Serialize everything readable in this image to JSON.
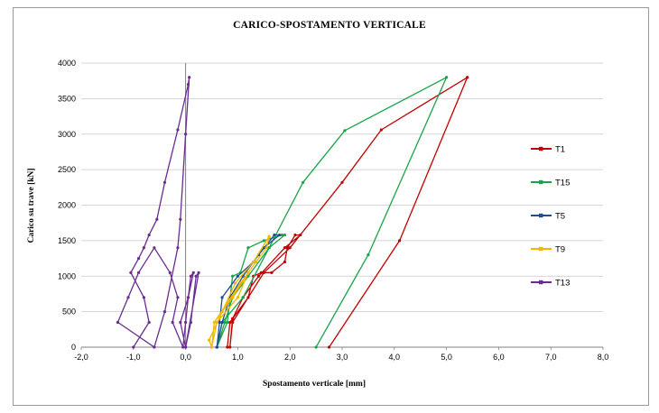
{
  "chart_data": {
    "type": "line",
    "title": "CARICO-SPOSTAMENTO VERTICALE",
    "xlabel": "Spostamento verticale [mm]",
    "ylabel": "Carico su trave [kN]",
    "xlim": [
      -2,
      8
    ],
    "ylim": [
      0,
      4000
    ],
    "xticks": [
      "-2,0",
      "-1,0",
      "0,0",
      "1,0",
      "2,0",
      "3,0",
      "4,0",
      "5,0",
      "6,0",
      "7,0",
      "8,0"
    ],
    "yticks": [
      "0",
      "500",
      "1000",
      "1500",
      "2000",
      "2500",
      "3000",
      "3500",
      "4000"
    ],
    "grid": "horizontal",
    "legend": "right",
    "series": [
      {
        "name": "T1",
        "color": "#c00000",
        "points": [
          [
            0.8,
            0
          ],
          [
            0.85,
            350
          ],
          [
            1.2,
            700
          ],
          [
            1.3,
            1000
          ],
          [
            1.45,
            1050
          ],
          [
            1.65,
            1050
          ],
          [
            1.9,
            1200
          ],
          [
            1.95,
            1400
          ],
          [
            2.1,
            1580
          ],
          [
            2.2,
            1580
          ],
          [
            1.9,
            1400
          ],
          [
            1.4,
            1000
          ],
          [
            1.1,
            700
          ],
          [
            0.9,
            400
          ],
          [
            0.85,
            0
          ],
          [
            0.9,
            350
          ],
          [
            1.5,
            1050
          ],
          [
            2.0,
            1400
          ],
          [
            3.0,
            2320
          ],
          [
            3.75,
            3060
          ],
          [
            5.4,
            3800
          ],
          [
            4.1,
            1500
          ],
          [
            2.75,
            0
          ]
        ]
      },
      {
        "name": "T15",
        "color": "#1aa34a",
        "points": [
          [
            0.6,
            0
          ],
          [
            0.8,
            350
          ],
          [
            0.9,
            1000
          ],
          [
            1.05,
            1050
          ],
          [
            1.2,
            1400
          ],
          [
            1.5,
            1500
          ],
          [
            1.85,
            1580
          ],
          [
            1.9,
            1580
          ],
          [
            1.6,
            1400
          ],
          [
            1.2,
            1000
          ],
          [
            0.9,
            700
          ],
          [
            0.75,
            350
          ],
          [
            0.6,
            0
          ],
          [
            0.7,
            350
          ],
          [
            1.1,
            700
          ],
          [
            1.6,
            1400
          ],
          [
            2.25,
            2320
          ],
          [
            3.05,
            3050
          ],
          [
            5.0,
            3800
          ],
          [
            3.5,
            1300
          ],
          [
            2.5,
            0
          ]
        ]
      },
      {
        "name": "T5",
        "color": "#1f4e8c",
        "points": [
          [
            0.6,
            0
          ],
          [
            0.65,
            350
          ],
          [
            0.7,
            700
          ],
          [
            1.0,
            1000
          ],
          [
            1.3,
            1200
          ],
          [
            1.5,
            1400
          ],
          [
            1.8,
            1580
          ],
          [
            1.7,
            1580
          ],
          [
            1.4,
            1300
          ],
          [
            1.1,
            1000
          ],
          [
            0.85,
            700
          ],
          [
            0.7,
            350
          ],
          [
            0.6,
            0
          ]
        ]
      },
      {
        "name": "T9",
        "color": "#f0b800",
        "points": [
          [
            0.5,
            0
          ],
          [
            0.55,
            350
          ],
          [
            0.9,
            700
          ],
          [
            1.2,
            1050
          ],
          [
            1.35,
            1200
          ],
          [
            1.55,
            1400
          ],
          [
            1.6,
            1550
          ],
          [
            1.6,
            1560
          ],
          [
            1.3,
            1200
          ],
          [
            0.95,
            900
          ],
          [
            0.7,
            500
          ],
          [
            0.45,
            100
          ],
          [
            0.5,
            0
          ],
          [
            0.6,
            350
          ],
          [
            1.0,
            700
          ],
          [
            1.2,
            1050
          ],
          [
            1.05,
            900
          ],
          [
            0.55,
            350
          ],
          [
            0.5,
            0
          ]
        ]
      },
      {
        "name": "T13",
        "color": "#6a2c91",
        "points": [
          [
            -1.0,
            0
          ],
          [
            -0.7,
            350
          ],
          [
            -0.8,
            700
          ],
          [
            -1.05,
            1050
          ],
          [
            -0.9,
            1250
          ],
          [
            -0.8,
            1400
          ],
          [
            -0.7,
            1580
          ],
          [
            -0.55,
            1800
          ],
          [
            -0.4,
            2320
          ],
          [
            -0.15,
            3060
          ],
          [
            0.05,
            3700
          ],
          [
            0.07,
            3800
          ],
          [
            0.0,
            3000
          ],
          [
            -0.1,
            1800
          ],
          [
            -0.15,
            1400
          ],
          [
            -0.4,
            500
          ],
          [
            -0.6,
            0
          ],
          [
            -1.3,
            350
          ],
          [
            -1.1,
            700
          ],
          [
            -0.9,
            1050
          ],
          [
            -0.6,
            1400
          ],
          [
            -0.3,
            1050
          ],
          [
            -0.15,
            700
          ],
          [
            -0.25,
            350
          ],
          [
            -0.05,
            0
          ],
          [
            0.0,
            350
          ],
          [
            0.05,
            700
          ],
          [
            0.1,
            1000
          ],
          [
            0.15,
            1050
          ],
          [
            0.05,
            700
          ],
          [
            -0.1,
            350
          ],
          [
            0.0,
            0
          ],
          [
            0.1,
            350
          ],
          [
            0.2,
            1000
          ],
          [
            0.25,
            1050
          ],
          [
            0.0,
            0
          ]
        ]
      }
    ]
  }
}
